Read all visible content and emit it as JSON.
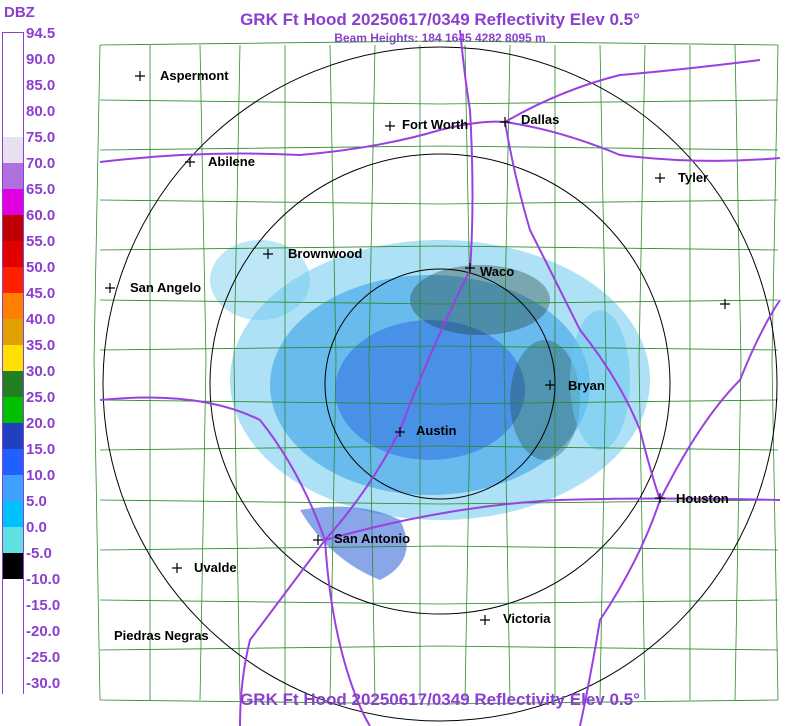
{
  "header": {
    "title": "GRK Ft Hood 20250617/0349 Reflectivity Elev 0.5°",
    "beam_heights": "Beam Heights: 184 1645 4282 8095 m"
  },
  "footer": {
    "title": "GRK Ft Hood 20250617/0349 Reflectivity Elev 0.5°"
  },
  "legend": {
    "unit": "DBZ",
    "labels": [
      "94.5",
      "90.0",
      "85.0",
      "80.0",
      "75.0",
      "70.0",
      "65.0",
      "60.0",
      "55.0",
      "50.0",
      "45.0",
      "40.0",
      "35.0",
      "30.0",
      "25.0",
      "20.0",
      "15.0",
      "10.0",
      "5.0",
      "0.0",
      "-5.0",
      "-10.0",
      "-15.0",
      "-20.0",
      "-25.0",
      "-30.0"
    ],
    "colors": [
      "#ffffff",
      "#ffffff",
      "#ffffff",
      "#ffffff",
      "#e8e0f0",
      "#b070e0",
      "#e000e0",
      "#c00000",
      "#e00000",
      "#ff2000",
      "#ff8000",
      "#e0a000",
      "#ffe000",
      "#208020",
      "#00c000",
      "#2040c0",
      "#2060ff",
      "#40a0ff",
      "#00c0ff",
      "#60e0e0",
      "#000000",
      "#ffffff",
      "#ffffff",
      "#ffffff",
      "#ffffff",
      "#ffffff"
    ]
  },
  "cities": [
    {
      "name": "Aspermont"
    },
    {
      "name": "Fort Worth"
    },
    {
      "name": "Dallas"
    },
    {
      "name": "Abilene"
    },
    {
      "name": "Tyler"
    },
    {
      "name": "Brownwood"
    },
    {
      "name": "Waco"
    },
    {
      "name": "San Angelo"
    },
    {
      "name": "Bryan"
    },
    {
      "name": "Austin"
    },
    {
      "name": "Houston"
    },
    {
      "name": "San Antonio"
    },
    {
      "name": "Uvalde"
    },
    {
      "name": "Victoria"
    },
    {
      "name": "Piedras Negras"
    }
  ],
  "colors": {
    "title": "#8a3fd0",
    "county_lines": "#2a8a2a",
    "highways": "#9a40e0",
    "range_rings": "#000000"
  }
}
